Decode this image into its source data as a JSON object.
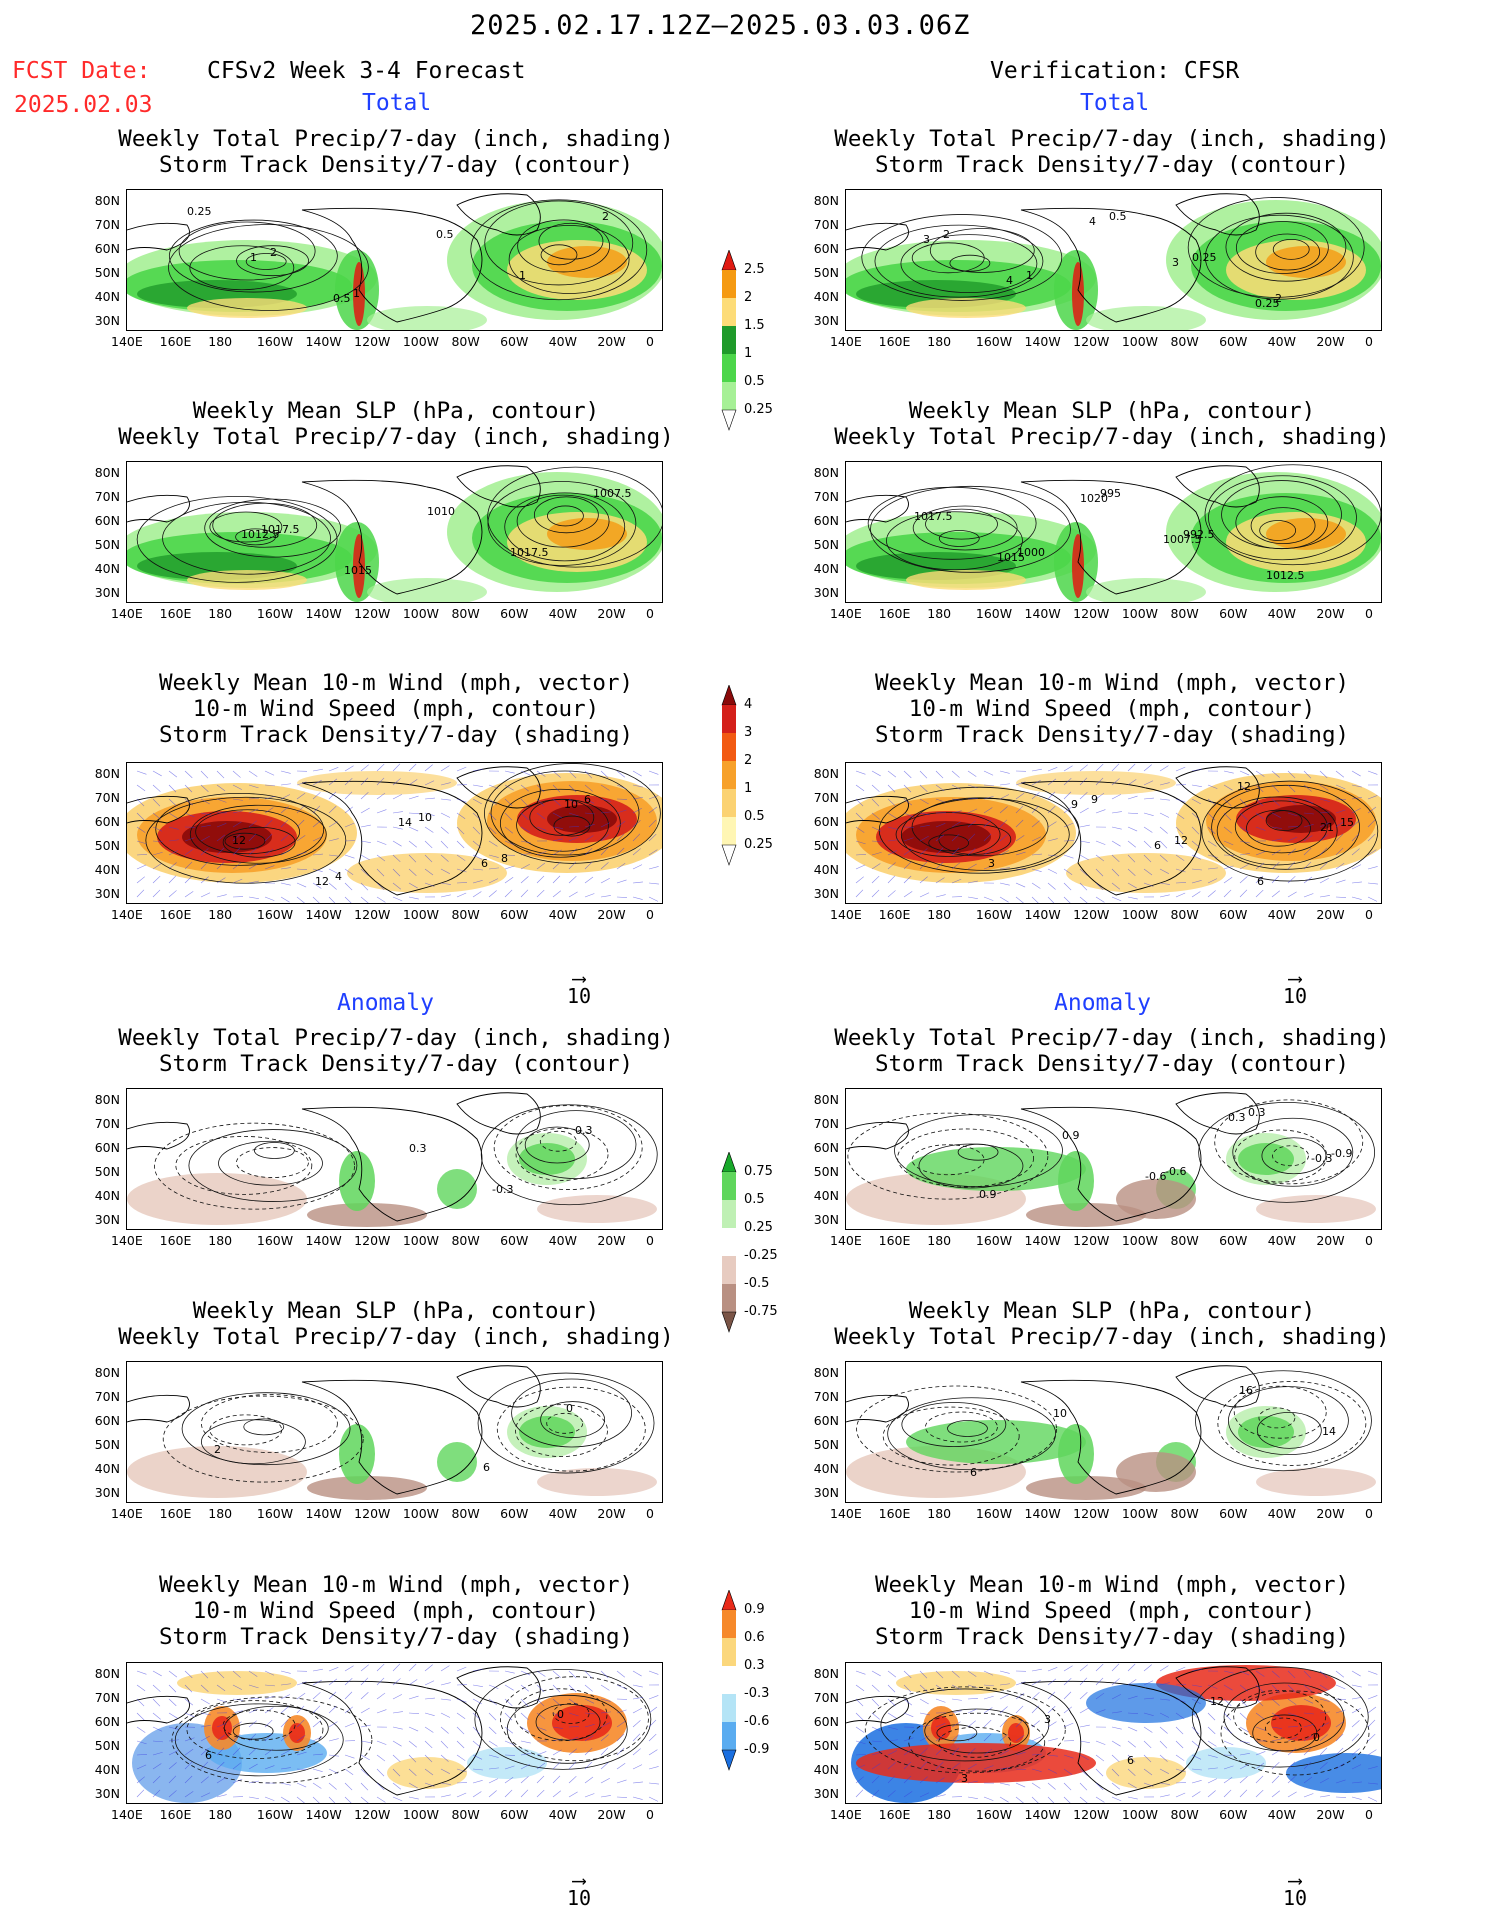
{
  "header": {
    "period": "2025.02.17.12Z—2025.03.03.06Z",
    "fcst_label": "FCST Date:",
    "fcst_date": "2025.02.03",
    "model": "CFSv2 Week 3-4 Forecast",
    "verification": "Verification: CFSR",
    "total": "Total",
    "anomaly": "Anomaly"
  },
  "titles": {
    "precip_storm": [
      "Weekly Total Precip/7-day (inch, shading)",
      "Storm Track Density/7-day (contour)"
    ],
    "slp_precip": [
      "Weekly Mean SLP (hPa, contour)",
      "Weekly Total Precip/7-day (inch, shading)"
    ],
    "wind_storm": [
      "Weekly Mean 10-m Wind (mph, vector)",
      "10-m Wind Speed (mph, contour)",
      "Storm Track Density/7-day (shading)"
    ]
  },
  "axes": {
    "lon": [
      "140E",
      "160E",
      "180",
      "160W",
      "140W",
      "120W",
      "100W",
      "80W",
      "60W",
      "40W",
      "20W",
      "0"
    ],
    "lat": [
      "80N",
      "70N",
      "60N",
      "50N",
      "40N",
      "30N"
    ]
  },
  "vector_ref": "10",
  "colorbars": {
    "precip": {
      "labels": [
        "2.5",
        "2",
        "1.5",
        "1",
        "0.5",
        "0.25"
      ],
      "colors": [
        "#e01a12",
        "#f59a12",
        "#fddc78",
        "#1f9a2a",
        "#4cd64a",
        "#a6f096",
        "#ffffff"
      ]
    },
    "storm": {
      "labels": [
        "4",
        "3",
        "2",
        "1",
        "0.5",
        "0.25"
      ],
      "colors": [
        "#8a0a0a",
        "#d4201a",
        "#f25a12",
        "#f7a12a",
        "#fbd272",
        "#fff6b4",
        "#ffffff"
      ]
    },
    "precip_anom": {
      "labels": [
        "0.75",
        "0.5",
        "0.25",
        "-0.25",
        "-0.5",
        "-0.75"
      ],
      "colors": [
        "#18a82a",
        "#5fd65c",
        "#bff0b4",
        "#ffffff",
        "#e7cbc0",
        "#b99082",
        "#7a5446"
      ]
    },
    "storm_anom": {
      "labels": [
        "0.9",
        "0.6",
        "0.3",
        "-0.3",
        "-0.6",
        "-0.9"
      ],
      "colors": [
        "#e82a1a",
        "#f6892a",
        "#fbd77c",
        "#ffffff",
        "#b4e4f6",
        "#5aacf0",
        "#1a6fe0"
      ]
    }
  },
  "panels": [
    {
      "id": "fc-total-precip",
      "type": "precip",
      "labels": [
        "0.25",
        "2",
        "1",
        "0.5",
        "1",
        "2",
        "1",
        "0.5"
      ]
    },
    {
      "id": "vf-total-precip",
      "type": "precip",
      "labels": [
        "2",
        "1",
        "0.5",
        "0.25",
        "2",
        "3",
        "4",
        "4",
        "3",
        "0.25"
      ]
    },
    {
      "id": "fc-total-slp",
      "type": "precip",
      "labels": [
        "1017.5",
        "1015",
        "1010",
        "1017.5",
        "1007.5",
        "1012.5"
      ]
    },
    {
      "id": "vf-total-slp",
      "type": "precip",
      "labels": [
        "1000",
        "995",
        "992.5",
        "1012.5",
        "1017.5",
        "1015",
        "1020",
        "1007.5"
      ]
    },
    {
      "id": "fc-total-wind",
      "type": "storm",
      "labels": [
        "4",
        "10",
        "8",
        "6",
        "12",
        "12",
        "14",
        "6",
        "10"
      ]
    },
    {
      "id": "vf-total-wind",
      "type": "storm",
      "labels": [
        "9",
        "12",
        "6",
        "15",
        "3",
        "9",
        "6",
        "12",
        "21"
      ]
    },
    {
      "id": "fc-anom-precip",
      "type": "precip_anom",
      "labels": [
        "0.3",
        "-0.3",
        "0.3"
      ]
    },
    {
      "id": "vf-anom-precip",
      "type": "precip_anom",
      "labels": [
        "-0.6",
        "0.3",
        "-0.9",
        "0.9",
        "0.9",
        "-0.6",
        "0.3",
        "-0.3"
      ]
    },
    {
      "id": "fc-anom-slp",
      "type": "precip_anom",
      "labels": [
        "6",
        "0",
        "2"
      ]
    },
    {
      "id": "vf-anom-slp",
      "type": "precip_anom",
      "labels": [
        "16",
        "14",
        "6",
        "10"
      ]
    },
    {
      "id": "fc-anom-wind",
      "type": "storm_anom",
      "labels": [
        "0",
        "6"
      ]
    },
    {
      "id": "vf-anom-wind",
      "type": "storm_anom",
      "labels": [
        "0",
        "3",
        "3",
        "6",
        "12"
      ]
    }
  ]
}
